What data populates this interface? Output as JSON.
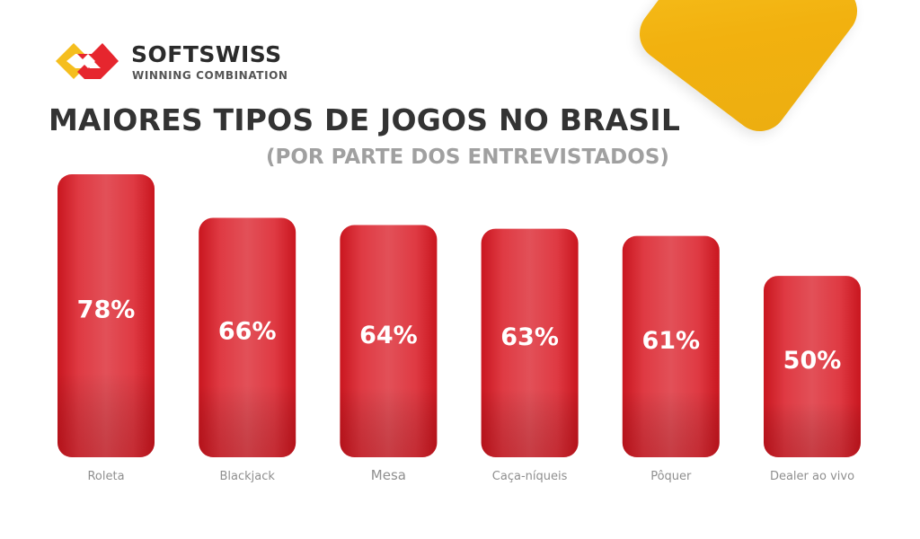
{
  "brand": {
    "name": "SOFTSWISS",
    "tagline": "WINNING COMBINATION",
    "colors": {
      "logo_yellow": "#f5be1e",
      "logo_red": "#e6262e",
      "tile_yellow": "#f3b813",
      "bar_red": "#d81f29",
      "title_gray": "#333333",
      "subtitle_gray": "#a0a0a0",
      "category_gray": "#8f8f8f"
    }
  },
  "chart_data": {
    "type": "bar",
    "title": "MAIORES TIPOS DE JOGOS NO BRASIL",
    "subtitle": "(POR PARTE DOS ENTREVISTADOS)",
    "categories": [
      "Roleta",
      "Blackjack",
      "Mesa",
      "Caça-níqueis",
      "Pôquer",
      "Dealer ao vivo"
    ],
    "values": [
      78,
      66,
      64,
      63,
      61,
      50
    ],
    "value_labels": [
      "78%",
      "66%",
      "64%",
      "63%",
      "61%",
      "50%"
    ],
    "unit": "%",
    "ylim": [
      0,
      78
    ],
    "grid": false,
    "legend": "none"
  }
}
